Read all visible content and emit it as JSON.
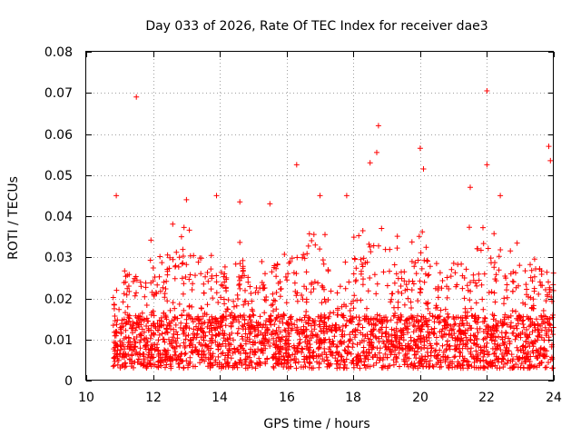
{
  "chart_data": {
    "type": "scatter",
    "title": "Day 033 of 2026, Rate Of TEC Index for receiver dae3",
    "xlabel": "GPS time / hours",
    "ylabel": "ROTI / TECUs",
    "xlim": [
      10,
      24
    ],
    "ylim": [
      0,
      0.08
    ],
    "xticks": [
      10,
      12,
      14,
      16,
      18,
      20,
      22,
      24
    ],
    "yticks": [
      0,
      0.01,
      0.02,
      0.03,
      0.04,
      0.05,
      0.06,
      0.07,
      0.08
    ],
    "xtick_labels": [
      "10",
      "12",
      "14",
      "16",
      "18",
      "20",
      "22",
      "24"
    ],
    "ytick_labels": [
      "0",
      "0.01",
      "0.02",
      "0.03",
      "0.04",
      "0.05",
      "0.06",
      "0.07",
      "0.08"
    ],
    "grid": true,
    "marker": "+",
    "color": "#ff0000",
    "x_range_of_points": [
      10.8,
      24.0
    ],
    "notable_points": [
      {
        "x": 11.5,
        "y": 0.069
      },
      {
        "x": 22.0,
        "y": 0.0705
      },
      {
        "x": 18.75,
        "y": 0.062
      },
      {
        "x": 18.7,
        "y": 0.0555
      },
      {
        "x": 20.0,
        "y": 0.0565
      },
      {
        "x": 16.3,
        "y": 0.0525
      },
      {
        "x": 23.85,
        "y": 0.057
      },
      {
        "x": 23.9,
        "y": 0.0535
      },
      {
        "x": 22.0,
        "y": 0.0525
      },
      {
        "x": 20.1,
        "y": 0.0515
      },
      {
        "x": 18.5,
        "y": 0.053
      },
      {
        "x": 10.9,
        "y": 0.045
      },
      {
        "x": 13.0,
        "y": 0.044
      },
      {
        "x": 13.9,
        "y": 0.045
      },
      {
        "x": 14.6,
        "y": 0.0435
      },
      {
        "x": 15.5,
        "y": 0.043
      },
      {
        "x": 17.0,
        "y": 0.045
      },
      {
        "x": 17.8,
        "y": 0.045
      },
      {
        "x": 21.5,
        "y": 0.047
      },
      {
        "x": 22.4,
        "y": 0.045
      }
    ],
    "envelope": {
      "hours": [
        10.8,
        11.0,
        11.5,
        12.0,
        12.5,
        13.0,
        13.5,
        14.0,
        14.5,
        15.0,
        15.5,
        16.0,
        16.5,
        17.0,
        17.5,
        18.0,
        18.5,
        19.0,
        19.5,
        20.0,
        20.5,
        21.0,
        21.5,
        22.0,
        22.5,
        23.0,
        23.5,
        24.0
      ],
      "typical_max": [
        0.025,
        0.032,
        0.03,
        0.036,
        0.038,
        0.04,
        0.038,
        0.028,
        0.035,
        0.03,
        0.032,
        0.035,
        0.038,
        0.04,
        0.028,
        0.035,
        0.042,
        0.038,
        0.034,
        0.038,
        0.03,
        0.032,
        0.038,
        0.04,
        0.036,
        0.034,
        0.033,
        0.03
      ]
    }
  }
}
